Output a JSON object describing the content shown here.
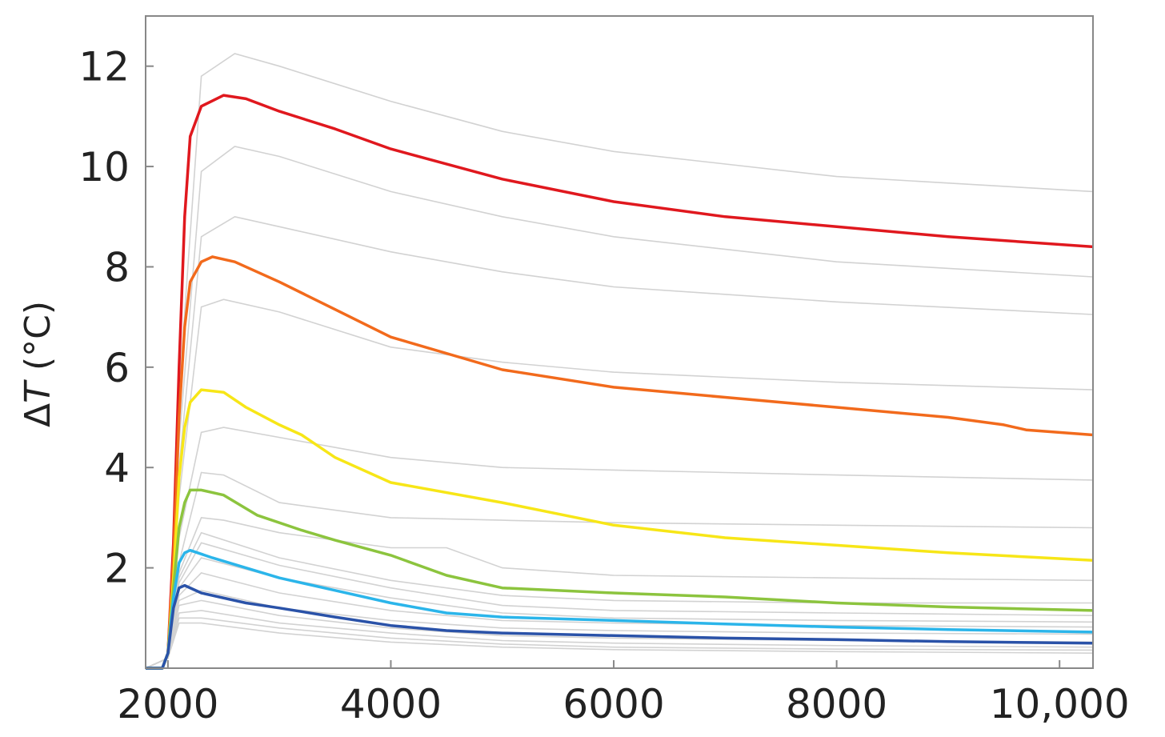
{
  "chart_data": {
    "type": "line",
    "title": "",
    "xlabel": "",
    "ylabel": "ΔT (°C)",
    "ylabel_symbol": "Δ",
    "ylabel_italic": "T",
    "ylabel_unit": " (°C)",
    "xlim": [
      1800,
      10300
    ],
    "ylim": [
      0,
      13
    ],
    "grid": false,
    "legend": "none",
    "x_ticks": [
      2000,
      4000,
      6000,
      8000,
      10000
    ],
    "x_tick_labels": [
      "2000",
      "4000",
      "6000",
      "8000",
      "10,000"
    ],
    "y_ticks": [
      2,
      4,
      6,
      8,
      10,
      12
    ],
    "y_tick_labels": [
      "2",
      "4",
      "6",
      "8",
      "10",
      "12"
    ],
    "background_series": {
      "color": "#d2d2d2",
      "curves": [
        [
          [
            1800,
            0
          ],
          [
            2000,
            0.2
          ],
          [
            2100,
            5.5
          ],
          [
            2300,
            11.8
          ],
          [
            2600,
            12.25
          ],
          [
            3000,
            12
          ],
          [
            4000,
            11.3
          ],
          [
            5000,
            10.7
          ],
          [
            6000,
            10.3
          ],
          [
            8000,
            9.8
          ],
          [
            10300,
            9.5
          ]
        ],
        [
          [
            1800,
            0
          ],
          [
            2000,
            0.2
          ],
          [
            2100,
            4.5
          ],
          [
            2300,
            9.9
          ],
          [
            2600,
            10.4
          ],
          [
            3000,
            10.2
          ],
          [
            4000,
            9.5
          ],
          [
            5000,
            9
          ],
          [
            6000,
            8.6
          ],
          [
            8000,
            8.1
          ],
          [
            10300,
            7.8
          ]
        ],
        [
          [
            1800,
            0
          ],
          [
            2000,
            0.2
          ],
          [
            2100,
            4
          ],
          [
            2300,
            8.6
          ],
          [
            2600,
            9
          ],
          [
            3000,
            8.8
          ],
          [
            4000,
            8.3
          ],
          [
            5000,
            7.9
          ],
          [
            6000,
            7.6
          ],
          [
            8000,
            7.3
          ],
          [
            10300,
            7.05
          ]
        ],
        [
          [
            1800,
            0
          ],
          [
            2000,
            0.2
          ],
          [
            2100,
            3.4
          ],
          [
            2300,
            7.2
          ],
          [
            2500,
            7.35
          ],
          [
            3000,
            7.1
          ],
          [
            4000,
            6.4
          ],
          [
            5000,
            6.1
          ],
          [
            6000,
            5.9
          ],
          [
            8000,
            5.7
          ],
          [
            10300,
            5.55
          ]
        ],
        [
          [
            1800,
            0
          ],
          [
            2000,
            0.2
          ],
          [
            2100,
            2.6
          ],
          [
            2300,
            4.7
          ],
          [
            2500,
            4.8
          ],
          [
            3000,
            4.6
          ],
          [
            4000,
            4.2
          ],
          [
            5000,
            4
          ],
          [
            6000,
            3.95
          ],
          [
            8000,
            3.85
          ],
          [
            10300,
            3.75
          ]
        ],
        [
          [
            1800,
            0
          ],
          [
            2000,
            0.2
          ],
          [
            2100,
            2.1
          ],
          [
            2300,
            3.9
          ],
          [
            2500,
            3.85
          ],
          [
            3000,
            3.3
          ],
          [
            4000,
            3
          ],
          [
            5000,
            2.95
          ],
          [
            6000,
            2.9
          ],
          [
            8000,
            2.85
          ],
          [
            10300,
            2.8
          ]
        ],
        [
          [
            1800,
            0
          ],
          [
            2000,
            0.2
          ],
          [
            2100,
            1.9
          ],
          [
            2300,
            3
          ],
          [
            2500,
            2.95
          ],
          [
            3000,
            2.7
          ],
          [
            4000,
            2.4
          ],
          [
            4500,
            2.4
          ],
          [
            5000,
            2
          ],
          [
            6000,
            1.85
          ],
          [
            8000,
            1.8
          ],
          [
            10300,
            1.75
          ]
        ],
        [
          [
            1800,
            0
          ],
          [
            2000,
            0.2
          ],
          [
            2100,
            1.8
          ],
          [
            2300,
            2.7
          ],
          [
            3000,
            2.2
          ],
          [
            4000,
            1.75
          ],
          [
            5000,
            1.45
          ],
          [
            6000,
            1.35
          ],
          [
            8000,
            1.3
          ],
          [
            10300,
            1.3
          ]
        ],
        [
          [
            1800,
            0
          ],
          [
            2000,
            0.2
          ],
          [
            2100,
            1.7
          ],
          [
            2300,
            2.5
          ],
          [
            3000,
            2.05
          ],
          [
            4000,
            1.6
          ],
          [
            5000,
            1.25
          ],
          [
            6000,
            1.15
          ],
          [
            8000,
            1.1
          ],
          [
            10300,
            1.05
          ]
        ],
        [
          [
            1800,
            0
          ],
          [
            2000,
            0.2
          ],
          [
            2100,
            1.6
          ],
          [
            2300,
            2.2
          ],
          [
            3000,
            1.8
          ],
          [
            4000,
            1.4
          ],
          [
            5000,
            1.1
          ],
          [
            6000,
            1
          ],
          [
            8000,
            0.95
          ],
          [
            10300,
            0.92
          ]
        ],
        [
          [
            1800,
            0
          ],
          [
            2000,
            0.2
          ],
          [
            2100,
            1.45
          ],
          [
            2300,
            1.9
          ],
          [
            3000,
            1.5
          ],
          [
            4000,
            1.15
          ],
          [
            5000,
            0.95
          ],
          [
            6000,
            0.9
          ],
          [
            8000,
            0.85
          ],
          [
            10300,
            0.82
          ]
        ],
        [
          [
            1800,
            0
          ],
          [
            2000,
            0.2
          ],
          [
            2100,
            1.35
          ],
          [
            2300,
            1.55
          ],
          [
            3000,
            1.2
          ],
          [
            4000,
            0.95
          ],
          [
            5000,
            0.8
          ],
          [
            6000,
            0.75
          ],
          [
            8000,
            0.7
          ],
          [
            10300,
            0.68
          ]
        ],
        [
          [
            1800,
            0
          ],
          [
            2000,
            0.2
          ],
          [
            2100,
            1.25
          ],
          [
            2300,
            1.35
          ],
          [
            3000,
            1.05
          ],
          [
            4000,
            0.8
          ],
          [
            5000,
            0.65
          ],
          [
            6000,
            0.6
          ],
          [
            8000,
            0.55
          ],
          [
            10300,
            0.52
          ]
        ],
        [
          [
            1800,
            0
          ],
          [
            2000,
            0.2
          ],
          [
            2100,
            1.1
          ],
          [
            2300,
            1.15
          ],
          [
            3000,
            0.9
          ],
          [
            4000,
            0.7
          ],
          [
            5000,
            0.55
          ],
          [
            6000,
            0.5
          ],
          [
            8000,
            0.45
          ],
          [
            10300,
            0.42
          ]
        ],
        [
          [
            1800,
            0
          ],
          [
            2000,
            0.2
          ],
          [
            2100,
            1
          ],
          [
            2300,
            1
          ],
          [
            3000,
            0.8
          ],
          [
            4000,
            0.6
          ],
          [
            5000,
            0.48
          ],
          [
            6000,
            0.42
          ],
          [
            8000,
            0.38
          ],
          [
            10300,
            0.36
          ]
        ],
        [
          [
            1800,
            0
          ],
          [
            2000,
            0.2
          ],
          [
            2100,
            0.9
          ],
          [
            2300,
            0.9
          ],
          [
            3000,
            0.7
          ],
          [
            4000,
            0.52
          ],
          [
            5000,
            0.42
          ],
          [
            6000,
            0.37
          ],
          [
            8000,
            0.33
          ],
          [
            10300,
            0.3
          ]
        ]
      ]
    },
    "series": [
      {
        "color": "#e0181e",
        "points": [
          [
            1800,
            0
          ],
          [
            1950,
            0
          ],
          [
            2000,
            0.3
          ],
          [
            2050,
            2.5
          ],
          [
            2100,
            6
          ],
          [
            2150,
            9
          ],
          [
            2200,
            10.6
          ],
          [
            2300,
            11.2
          ],
          [
            2500,
            11.42
          ],
          [
            2700,
            11.35
          ],
          [
            3000,
            11.1
          ],
          [
            3500,
            10.75
          ],
          [
            4000,
            10.35
          ],
          [
            5000,
            9.75
          ],
          [
            6000,
            9.3
          ],
          [
            7000,
            9
          ],
          [
            8000,
            8.8
          ],
          [
            9000,
            8.6
          ],
          [
            10300,
            8.4
          ]
        ]
      },
      {
        "color": "#f26a1c",
        "points": [
          [
            1800,
            0
          ],
          [
            1950,
            0
          ],
          [
            2000,
            0.3
          ],
          [
            2050,
            2.2
          ],
          [
            2100,
            5
          ],
          [
            2150,
            6.8
          ],
          [
            2200,
            7.7
          ],
          [
            2300,
            8.1
          ],
          [
            2400,
            8.2
          ],
          [
            2600,
            8.1
          ],
          [
            3000,
            7.7
          ],
          [
            3500,
            7.15
          ],
          [
            4000,
            6.6
          ],
          [
            5000,
            5.95
          ],
          [
            6000,
            5.6
          ],
          [
            7000,
            5.4
          ],
          [
            8000,
            5.2
          ],
          [
            9000,
            5
          ],
          [
            9500,
            4.85
          ],
          [
            9700,
            4.75
          ],
          [
            10300,
            4.65
          ]
        ]
      },
      {
        "color": "#f7e617",
        "points": [
          [
            1800,
            0
          ],
          [
            1950,
            0
          ],
          [
            2000,
            0.3
          ],
          [
            2050,
            1.8
          ],
          [
            2100,
            3.8
          ],
          [
            2150,
            4.8
          ],
          [
            2200,
            5.3
          ],
          [
            2300,
            5.55
          ],
          [
            2500,
            5.5
          ],
          [
            2700,
            5.2
          ],
          [
            3000,
            4.85
          ],
          [
            3200,
            4.65
          ],
          [
            3500,
            4.2
          ],
          [
            4000,
            3.7
          ],
          [
            5000,
            3.3
          ],
          [
            6000,
            2.85
          ],
          [
            7000,
            2.6
          ],
          [
            8000,
            2.45
          ],
          [
            9000,
            2.3
          ],
          [
            10300,
            2.15
          ]
        ]
      },
      {
        "color": "#8cc43e",
        "points": [
          [
            1800,
            0
          ],
          [
            1950,
            0
          ],
          [
            2000,
            0.3
          ],
          [
            2050,
            1.6
          ],
          [
            2100,
            2.8
          ],
          [
            2150,
            3.3
          ],
          [
            2200,
            3.55
          ],
          [
            2300,
            3.55
          ],
          [
            2500,
            3.45
          ],
          [
            2800,
            3.05
          ],
          [
            3200,
            2.75
          ],
          [
            3500,
            2.55
          ],
          [
            4000,
            2.25
          ],
          [
            4500,
            1.85
          ],
          [
            5000,
            1.6
          ],
          [
            6000,
            1.5
          ],
          [
            7000,
            1.42
          ],
          [
            8000,
            1.3
          ],
          [
            9000,
            1.22
          ],
          [
            10300,
            1.15
          ]
        ]
      },
      {
        "color": "#2bb5ea",
        "points": [
          [
            1800,
            0
          ],
          [
            1950,
            0
          ],
          [
            2000,
            0.3
          ],
          [
            2050,
            1.4
          ],
          [
            2100,
            2.1
          ],
          [
            2150,
            2.3
          ],
          [
            2200,
            2.35
          ],
          [
            2400,
            2.2
          ],
          [
            3000,
            1.8
          ],
          [
            3500,
            1.55
          ],
          [
            4000,
            1.3
          ],
          [
            4500,
            1.1
          ],
          [
            5000,
            1.02
          ],
          [
            6000,
            0.95
          ],
          [
            7000,
            0.88
          ],
          [
            8000,
            0.82
          ],
          [
            9000,
            0.77
          ],
          [
            10300,
            0.72
          ]
        ]
      },
      {
        "color": "#2a52a8",
        "points": [
          [
            1800,
            0
          ],
          [
            1950,
            0
          ],
          [
            2000,
            0.3
          ],
          [
            2050,
            1.2
          ],
          [
            2100,
            1.6
          ],
          [
            2150,
            1.65
          ],
          [
            2300,
            1.5
          ],
          [
            2700,
            1.3
          ],
          [
            3000,
            1.2
          ],
          [
            3500,
            1.02
          ],
          [
            4000,
            0.85
          ],
          [
            4500,
            0.75
          ],
          [
            5000,
            0.7
          ],
          [
            6000,
            0.65
          ],
          [
            7000,
            0.6
          ],
          [
            8000,
            0.57
          ],
          [
            9000,
            0.53
          ],
          [
            10300,
            0.5
          ]
        ]
      }
    ]
  }
}
